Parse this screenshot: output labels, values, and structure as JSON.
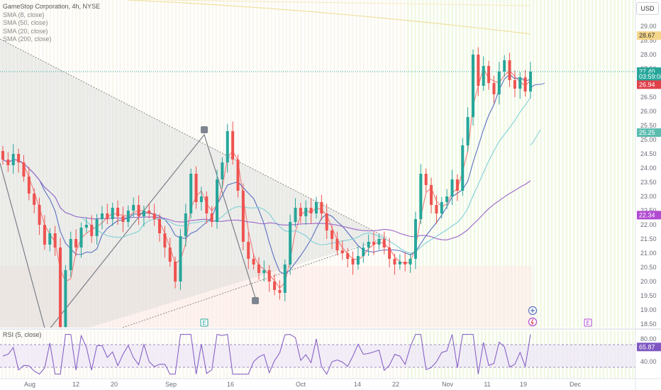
{
  "header": {
    "title": "GameStop Corporation, 4h, NYSE",
    "indicators": [
      "SMA (8, close)",
      "SMA (50, close)",
      "SMA (20, close)",
      "SMA (200, close)"
    ],
    "currency_button": "USD",
    "rsi_label": "RSI (5, close)"
  },
  "chart_data": {
    "type": "candlestick",
    "title": "GameStop Corporation, 4h, NYSE",
    "x_ticks": [
      "Aug",
      "12",
      "20",
      "Sep",
      "16",
      "Oct",
      "14",
      "22",
      "Nov",
      "11",
      "19",
      "Dec"
    ],
    "y_ticks": [
      "29.00",
      "28.50",
      "28.00",
      "27.50",
      "27.00",
      "26.50",
      "26.00",
      "25.50",
      "25.00",
      "24.50",
      "24.00",
      "23.50",
      "23.00",
      "22.50",
      "22.00",
      "21.50",
      "21.00",
      "20.50",
      "20.00",
      "19.50",
      "19.00",
      "18.50"
    ],
    "ylim": [
      18.3,
      29.5
    ],
    "price_tags": [
      {
        "label": "28.67",
        "value": 28.67,
        "color": "#f5d58a",
        "text_color": "#333333"
      },
      {
        "label": "27.40",
        "value": 27.4,
        "color": "#26a69a",
        "text_color": "#ffffff"
      },
      {
        "label": "03:59:08",
        "value": 27.22,
        "color": "#26a69a",
        "text_color": "#ffffff"
      },
      {
        "label": "26.98",
        "value": 26.98,
        "color": "#26a69a",
        "text_color": "#ffffff"
      },
      {
        "label": "26.94",
        "value": 26.94,
        "color": "#e0404a",
        "text_color": "#ffffff"
      },
      {
        "label": "25.25",
        "value": 25.25,
        "color": "#5cbcb0",
        "text_color": "#ffffff"
      },
      {
        "label": "22.34",
        "value": 22.34,
        "color": "#b04ad0",
        "text_color": "#ffffff"
      }
    ],
    "last_price": 27.4,
    "pattern_points": [
      {
        "label": "",
        "date_index": 0,
        "value": 25.0
      },
      {
        "label": "",
        "date_index": 60,
        "value": 18.5
      },
      {
        "label": "",
        "date_index": 120,
        "value": 25.45
      },
      {
        "label": "",
        "date_index": 168,
        "value": 19.5
      }
    ],
    "series_ohlc_summary": {
      "description_values": [
        [
          24.6,
          24.3
        ],
        [
          24.3,
          24.1
        ],
        [
          24.1,
          24.5
        ],
        [
          24.5,
          24.2
        ],
        [
          24.2,
          23.7
        ],
        [
          23.7,
          23.1
        ],
        [
          23.1,
          22.7
        ],
        [
          22.7,
          22.0
        ],
        [
          22.0,
          21.3
        ],
        [
          21.3,
          21.7
        ],
        [
          21.7,
          21.2
        ],
        [
          21.2,
          18.4
        ],
        [
          18.4,
          20.4
        ],
        [
          20.4,
          21.5
        ],
        [
          21.5,
          21.2
        ],
        [
          21.2,
          21.9
        ],
        [
          21.9,
          22.0
        ],
        [
          22.0,
          21.6
        ],
        [
          21.6,
          22.2
        ],
        [
          22.2,
          22.4
        ],
        [
          22.4,
          22.2
        ],
        [
          22.2,
          22.6
        ],
        [
          22.6,
          22.3
        ],
        [
          22.3,
          22.1
        ],
        [
          22.1,
          22.5
        ],
        [
          22.5,
          22.7
        ],
        [
          22.7,
          22.3
        ],
        [
          22.3,
          22.5
        ],
        [
          22.5,
          22.4
        ],
        [
          22.4,
          22.2
        ],
        [
          22.2,
          21.7
        ],
        [
          21.7,
          21.2
        ],
        [
          21.2,
          20.7
        ],
        [
          20.7,
          20.0
        ],
        [
          20.0,
          21.6
        ],
        [
          21.6,
          22.4
        ],
        [
          22.4,
          23.8
        ],
        [
          23.8,
          22.8
        ],
        [
          22.8,
          23.0
        ],
        [
          23.0,
          22.4
        ],
        [
          22.4,
          22.1
        ],
        [
          22.1,
          23.6
        ],
        [
          23.6,
          24.2
        ],
        [
          24.2,
          25.3
        ],
        [
          25.3,
          24.3
        ],
        [
          24.3,
          23.2
        ],
        [
          23.2,
          21.4
        ],
        [
          21.4,
          20.8
        ],
        [
          20.8,
          20.6
        ],
        [
          20.6,
          20.3
        ],
        [
          20.3,
          20.4
        ],
        [
          20.4,
          20.0
        ],
        [
          20.0,
          19.7
        ],
        [
          19.7,
          19.6
        ],
        [
          19.6,
          20.6
        ],
        [
          20.6,
          22.1
        ],
        [
          22.1,
          22.6
        ],
        [
          22.6,
          22.3
        ],
        [
          22.3,
          22.6
        ],
        [
          22.6,
          22.4
        ],
        [
          22.4,
          22.8
        ],
        [
          22.8,
          22.4
        ],
        [
          22.4,
          21.8
        ],
        [
          21.8,
          21.5
        ],
        [
          21.5,
          21.1
        ],
        [
          21.1,
          21.0
        ],
        [
          21.0,
          20.8
        ],
        [
          20.8,
          20.6
        ],
        [
          20.6,
          20.9
        ],
        [
          20.9,
          21.2
        ],
        [
          21.2,
          21.4
        ],
        [
          21.4,
          21.3
        ],
        [
          21.3,
          21.5
        ],
        [
          21.5,
          21.2
        ],
        [
          21.2,
          20.8
        ],
        [
          20.8,
          20.6
        ],
        [
          20.6,
          20.7
        ],
        [
          20.7,
          20.6
        ],
        [
          20.6,
          20.8
        ],
        [
          20.8,
          22.2
        ],
        [
          22.2,
          23.8
        ],
        [
          23.8,
          23.4
        ],
        [
          23.4,
          22.7
        ],
        [
          22.7,
          22.4
        ],
        [
          22.4,
          22.8
        ],
        [
          22.8,
          23.0
        ],
        [
          23.0,
          23.6
        ],
        [
          23.6,
          23.2
        ],
        [
          23.2,
          24.8
        ],
        [
          24.8,
          25.8
        ],
        [
          25.8,
          28.0
        ],
        [
          28.0,
          26.9
        ],
        [
          26.9,
          27.6
        ],
        [
          27.6,
          27.0
        ],
        [
          27.0,
          26.6
        ],
        [
          26.6,
          27.4
        ],
        [
          27.4,
          27.8
        ],
        [
          27.8,
          27.1
        ],
        [
          27.1,
          26.8
        ],
        [
          26.8,
          27.2
        ],
        [
          27.2,
          26.7
        ],
        [
          26.7,
          27.4
        ]
      ]
    },
    "sma_lines": [
      {
        "name": "SMA (8, close)",
        "color": "#f07a7a"
      },
      {
        "name": "SMA (20, close)",
        "color": "#5a6fc0"
      },
      {
        "name": "SMA (50, close)",
        "color": "#7fd0d8"
      },
      {
        "name": "SMA (200, close)",
        "color": "#9a66c8"
      }
    ],
    "rsi": {
      "label": "RSI (5, close)",
      "value_label": "65.87",
      "value": 65.87,
      "y_ticks": [
        "80.00",
        "40.00"
      ],
      "ylim": [
        10,
        95
      ],
      "band": [
        30,
        70
      ]
    },
    "markers": [
      "E",
      "E"
    ]
  }
}
